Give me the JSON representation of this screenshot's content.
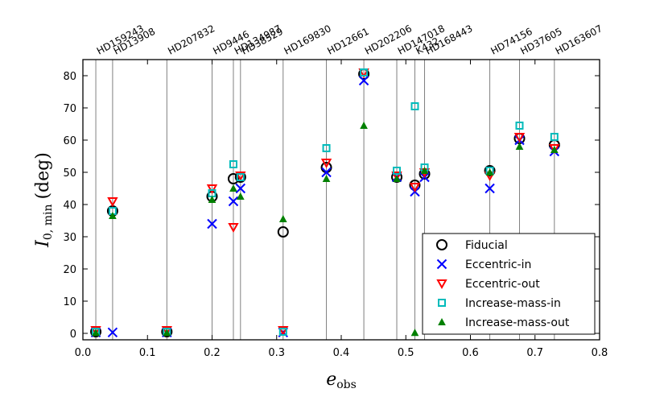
{
  "chart_data": {
    "type": "scatter",
    "xlabel_main": "e",
    "xlabel_sub": "obs",
    "ylabel_main": "I",
    "ylabel_sub": "0, min",
    "ylabel_unit": "(deg)",
    "xlim": [
      0.0,
      0.8
    ],
    "ylim": [
      -2,
      85
    ],
    "xticks": [
      0.0,
      0.1,
      0.2,
      0.3,
      0.4,
      0.5,
      0.6,
      0.7,
      0.8
    ],
    "xtick_labels": [
      "0.0",
      "0.1",
      "0.2",
      "0.3",
      "0.4",
      "0.5",
      "0.6",
      "0.7",
      "0.8"
    ],
    "yticks": [
      0,
      10,
      20,
      30,
      40,
      50,
      60,
      70,
      80
    ],
    "ytick_labels": [
      "0",
      "10",
      "20",
      "30",
      "40",
      "50",
      "60",
      "70",
      "80"
    ],
    "grid": false,
    "legend_position": "bottom-right",
    "stars": [
      {
        "name": "HD159243",
        "e": 0.02
      },
      {
        "name": "HD13908",
        "e": 0.046
      },
      {
        "name": "HD207832",
        "e": 0.13
      },
      {
        "name": "HD9446",
        "e": 0.2
      },
      {
        "name": "HD134987",
        "e": 0.233
      },
      {
        "name": "HD38529",
        "e": 0.244
      },
      {
        "name": "HD169830",
        "e": 0.31
      },
      {
        "name": "HD12661",
        "e": 0.377
      },
      {
        "name": "HD202206",
        "e": 0.435
      },
      {
        "name": "HD147018",
        "e": 0.486
      },
      {
        "name": "K432",
        "e": 0.514
      },
      {
        "name": "HD168443",
        "e": 0.529
      },
      {
        "name": "HD74156",
        "e": 0.63
      },
      {
        "name": "HD37605",
        "e": 0.676
      },
      {
        "name": "HD163607",
        "e": 0.73
      }
    ],
    "series": [
      {
        "name": "Fiducial",
        "marker": "circle",
        "color": "#000000",
        "x": [
          0.02,
          0.046,
          0.13,
          0.2,
          0.233,
          0.244,
          0.31,
          0.377,
          0.435,
          0.486,
          0.514,
          0.529,
          0.63,
          0.676,
          0.73
        ],
        "y": [
          0.5,
          38,
          0.5,
          42.5,
          48,
          48.5,
          31.5,
          51.5,
          80.5,
          48.5,
          46,
          49.5,
          50.5,
          60.5,
          58.5
        ]
      },
      {
        "name": "Eccentric-in",
        "marker": "x",
        "color": "#0000ff",
        "x": [
          0.02,
          0.046,
          0.13,
          0.2,
          0.233,
          0.244,
          0.31,
          0.377,
          0.435,
          0.486,
          0.514,
          0.529,
          0.63,
          0.676,
          0.73
        ],
        "y": [
          0.3,
          0.3,
          0.3,
          34,
          41,
          45,
          0.3,
          50,
          78.5,
          48.5,
          44,
          48.5,
          45,
          60,
          56.5
        ]
      },
      {
        "name": "Eccentric-out",
        "marker": "triangle-down",
        "color": "#ff0000",
        "x": [
          0.02,
          0.046,
          0.13,
          0.2,
          0.233,
          0.244,
          0.31,
          0.377,
          0.435,
          0.486,
          0.514,
          0.529,
          0.63,
          0.676,
          0.73
        ],
        "y": [
          1,
          41,
          1,
          45,
          33,
          49,
          1,
          53,
          81,
          49,
          45.5,
          50,
          49,
          61,
          57.5
        ]
      },
      {
        "name": "Increase-mass-in",
        "marker": "square",
        "color": "#00bbbb",
        "x": [
          0.02,
          0.046,
          0.13,
          0.2,
          0.233,
          0.244,
          0.31,
          0.377,
          0.435,
          0.486,
          0.514,
          0.529,
          0.63,
          0.676,
          0.73
        ],
        "y": [
          0.5,
          38,
          0.5,
          43.5,
          52.5,
          48.5,
          0.5,
          57.5,
          81,
          50.5,
          70.5,
          51.5,
          50.5,
          64.5,
          61
        ]
      },
      {
        "name": "Increase-mass-out",
        "marker": "triangle-up",
        "color": "#008000",
        "x": [
          0.02,
          0.046,
          0.13,
          0.2,
          0.233,
          0.244,
          0.31,
          0.377,
          0.435,
          0.486,
          0.514,
          0.529,
          0.63,
          0.676,
          0.73
        ],
        "y": [
          0.2,
          36.5,
          0.2,
          41.5,
          45,
          42.5,
          35.5,
          48,
          64.5,
          48,
          0.2,
          50.5,
          50,
          58,
          57
        ]
      }
    ]
  }
}
